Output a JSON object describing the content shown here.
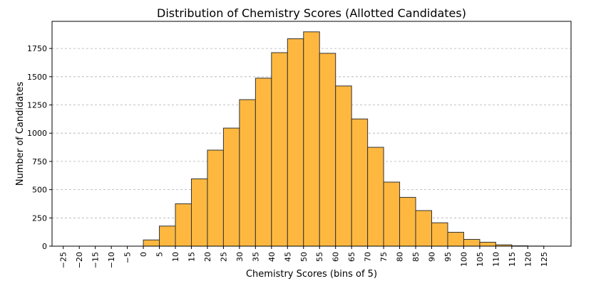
{
  "chart_data": {
    "type": "bar",
    "title": "Distribution of Chemistry Scores (Allotted Candidates)",
    "xlabel": "Chemistry Scores (bins of 5)",
    "ylabel": "Number of Candidates",
    "x_ticks": [
      "−25",
      "−20",
      "−15",
      "−10",
      "−5",
      "0",
      "5",
      "10",
      "15",
      "20",
      "25",
      "30",
      "35",
      "40",
      "45",
      "50",
      "55",
      "60",
      "65",
      "70",
      "75",
      "80",
      "85",
      "90",
      "95",
      "100",
      "105",
      "110",
      "115",
      "120",
      "125"
    ],
    "y_ticks": [
      "0",
      "250",
      "500",
      "750",
      "1000",
      "1250",
      "1500",
      "1750"
    ],
    "xlim": [
      -28.5,
      133.5
    ],
    "ylim": [
      0,
      1990
    ],
    "bin_width": 5,
    "bins": [
      {
        "start": -25,
        "count": 0
      },
      {
        "start": -20,
        "count": 0
      },
      {
        "start": -15,
        "count": 0
      },
      {
        "start": -10,
        "count": 0
      },
      {
        "start": -5,
        "count": 0
      },
      {
        "start": 0,
        "count": 55
      },
      {
        "start": 5,
        "count": 178
      },
      {
        "start": 10,
        "count": 375
      },
      {
        "start": 15,
        "count": 596
      },
      {
        "start": 20,
        "count": 850
      },
      {
        "start": 25,
        "count": 1045
      },
      {
        "start": 30,
        "count": 1297
      },
      {
        "start": 35,
        "count": 1487
      },
      {
        "start": 40,
        "count": 1713
      },
      {
        "start": 45,
        "count": 1836
      },
      {
        "start": 50,
        "count": 1897
      },
      {
        "start": 55,
        "count": 1707
      },
      {
        "start": 60,
        "count": 1418
      },
      {
        "start": 65,
        "count": 1126
      },
      {
        "start": 70,
        "count": 875
      },
      {
        "start": 75,
        "count": 567
      },
      {
        "start": 80,
        "count": 432
      },
      {
        "start": 85,
        "count": 315
      },
      {
        "start": 90,
        "count": 207
      },
      {
        "start": 95,
        "count": 123
      },
      {
        "start": 100,
        "count": 60
      },
      {
        "start": 105,
        "count": 35
      },
      {
        "start": 110,
        "count": 12
      },
      {
        "start": 115,
        "count": 3
      },
      {
        "start": 120,
        "count": 1
      }
    ],
    "grid": "y-dashed",
    "bar_color": "#ffb83f",
    "edge_color": "#333333"
  }
}
